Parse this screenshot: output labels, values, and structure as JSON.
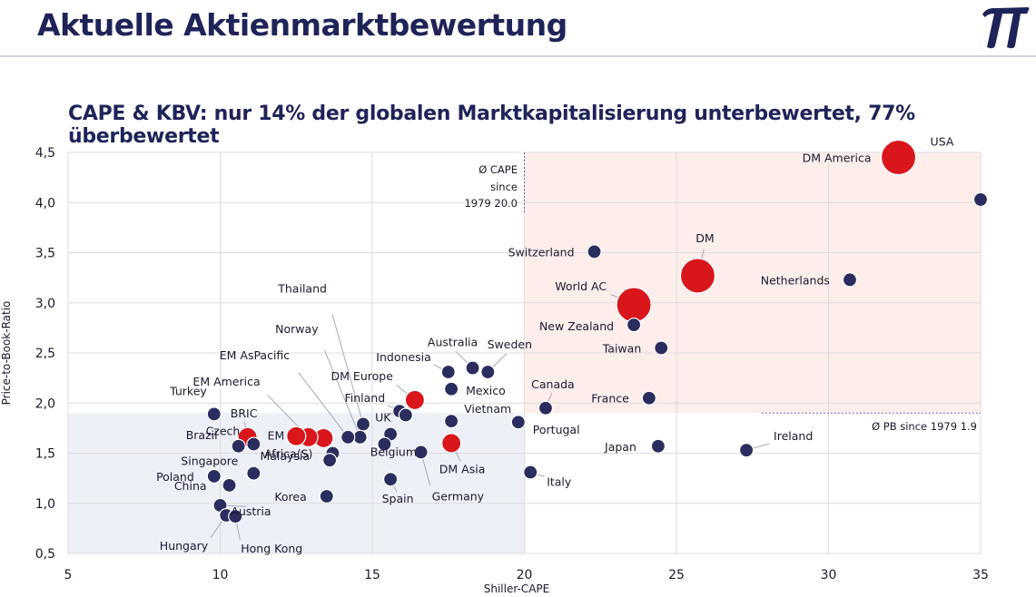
{
  "page": {
    "title": "Aktuelle Aktienmarktbewertung",
    "subtitle": "CAPE & KBV: nur 14% der globalen Marktkapitalisierung unterbewertet, 77% überbewertet",
    "logo_text": "π"
  },
  "chart_data": {
    "type": "scatter",
    "xlabel": "Shiller-CAPE",
    "ylabel": "Price-to-Book-Ratio",
    "xlim": [
      5,
      35
    ],
    "ylim": [
      0.5,
      4.5
    ],
    "x_ticks": [
      "5",
      "10",
      "15",
      "20",
      "25",
      "30",
      "35"
    ],
    "y_ticks": [
      "0,5",
      "1,0",
      "1,5",
      "2,0",
      "2,5",
      "3,0",
      "3,5",
      "4,0",
      "4,5"
    ],
    "grid": true,
    "colors": {
      "country": "#2b2d5e",
      "aggregate": "#d8161b",
      "overvalued_zone": "#fdeeec",
      "undervalued_zone": "#eef0f8"
    },
    "reference_lines": {
      "cape_avg": {
        "value": 20.0,
        "label_lines": [
          "Ø CAPE",
          "since",
          "1979 20.0"
        ]
      },
      "pb_avg": {
        "value": 1.9,
        "label": "Ø PB since 1979 1.9"
      }
    },
    "points": [
      {
        "label": "USA",
        "x": 32.3,
        "y": 4.45,
        "kind": "aggregate",
        "size": "xl"
      },
      {
        "label": "DM America",
        "x": 32.3,
        "y": 4.45,
        "kind": "aggregate",
        "size": "xl"
      },
      {
        "label": "",
        "x": 35.0,
        "y": 4.03,
        "kind": "country",
        "size": "s"
      },
      {
        "label": "Switzerland",
        "x": 22.3,
        "y": 3.51,
        "kind": "country",
        "size": "s"
      },
      {
        "label": "DM",
        "x": 25.7,
        "y": 3.27,
        "kind": "aggregate",
        "size": "xl"
      },
      {
        "label": "Netherlands",
        "x": 30.7,
        "y": 3.23,
        "kind": "country",
        "size": "s"
      },
      {
        "label": "World AC",
        "x": 23.6,
        "y": 2.98,
        "kind": "aggregate",
        "size": "xl"
      },
      {
        "label": "New Zealand",
        "x": 23.6,
        "y": 2.78,
        "kind": "country",
        "size": "s"
      },
      {
        "label": "Taiwan",
        "x": 24.5,
        "y": 2.55,
        "kind": "country",
        "size": "s"
      },
      {
        "label": "Australia",
        "x": 18.3,
        "y": 2.35,
        "kind": "country",
        "size": "s"
      },
      {
        "label": "Sweden",
        "x": 18.8,
        "y": 2.31,
        "kind": "country",
        "size": "s"
      },
      {
        "label": "Indonesia",
        "x": 17.5,
        "y": 2.31,
        "kind": "country",
        "size": "s"
      },
      {
        "label": "Mexico",
        "x": 17.6,
        "y": 2.14,
        "kind": "country",
        "size": "s"
      },
      {
        "label": "DM Europe",
        "x": 16.4,
        "y": 2.03,
        "kind": "aggregate",
        "size": "m"
      },
      {
        "label": "France",
        "x": 24.1,
        "y": 2.05,
        "kind": "country",
        "size": "s"
      },
      {
        "label": "Canada",
        "x": 20.7,
        "y": 1.95,
        "kind": "country",
        "size": "s"
      },
      {
        "label": "Finland",
        "x": 15.9,
        "y": 1.92,
        "kind": "country",
        "size": "s"
      },
      {
        "label": "UK",
        "x": 16.1,
        "y": 1.88,
        "kind": "country",
        "size": "s"
      },
      {
        "label": "Turkey",
        "x": 9.8,
        "y": 1.89,
        "kind": "country",
        "size": "s"
      },
      {
        "label": "Vietnam",
        "x": 17.6,
        "y": 1.82,
        "kind": "country",
        "size": "s"
      },
      {
        "label": "Portugal",
        "x": 19.8,
        "y": 1.81,
        "kind": "country",
        "size": "s"
      },
      {
        "label": "Thailand",
        "x": 14.7,
        "y": 1.79,
        "kind": "country",
        "size": "s"
      },
      {
        "label": "",
        "x": 15.6,
        "y": 1.69,
        "kind": "country",
        "size": "s"
      },
      {
        "label": "Norway",
        "x": 14.6,
        "y": 1.66,
        "kind": "country",
        "size": "s"
      },
      {
        "label": "EM AsPacific",
        "x": 14.2,
        "y": 1.66,
        "kind": "country",
        "size": "s"
      },
      {
        "label": "",
        "x": 13.4,
        "y": 1.65,
        "kind": "aggregate",
        "size": "m"
      },
      {
        "label": "EM America",
        "x": 12.9,
        "y": 1.66,
        "kind": "aggregate",
        "size": "m"
      },
      {
        "label": "EM",
        "x": 12.5,
        "y": 1.67,
        "kind": "aggregate",
        "size": "m"
      },
      {
        "label": "BRIC",
        "x": 10.9,
        "y": 1.66,
        "kind": "aggregate",
        "size": "m"
      },
      {
        "label": "Czech",
        "x": 11.1,
        "y": 1.59,
        "kind": "country",
        "size": "s"
      },
      {
        "label": "Brazil",
        "x": 10.6,
        "y": 1.57,
        "kind": "country",
        "size": "s"
      },
      {
        "label": "DM Asia",
        "x": 17.6,
        "y": 1.6,
        "kind": "aggregate",
        "size": "m"
      },
      {
        "label": "Japan",
        "x": 24.4,
        "y": 1.57,
        "kind": "country",
        "size": "s"
      },
      {
        "label": "Ireland",
        "x": 27.3,
        "y": 1.53,
        "kind": "country",
        "size": "s"
      },
      {
        "label": "Belgium",
        "x": 15.4,
        "y": 1.59,
        "kind": "country",
        "size": "s"
      },
      {
        "label": "Germany",
        "x": 16.6,
        "y": 1.51,
        "kind": "country",
        "size": "s"
      },
      {
        "label": "Africa(S)",
        "x": 13.7,
        "y": 1.5,
        "kind": "country",
        "size": "s"
      },
      {
        "label": "Malaysia",
        "x": 13.6,
        "y": 1.43,
        "kind": "country",
        "size": "s"
      },
      {
        "label": "Singapore",
        "x": 11.1,
        "y": 1.3,
        "kind": "country",
        "size": "s"
      },
      {
        "label": "Italy",
        "x": 20.2,
        "y": 1.31,
        "kind": "country",
        "size": "s"
      },
      {
        "label": "Poland",
        "x": 9.8,
        "y": 1.27,
        "kind": "country",
        "size": "s"
      },
      {
        "label": "Spain",
        "x": 15.6,
        "y": 1.24,
        "kind": "country",
        "size": "s"
      },
      {
        "label": "China",
        "x": 10.3,
        "y": 1.18,
        "kind": "country",
        "size": "s"
      },
      {
        "label": "Korea",
        "x": 13.5,
        "y": 1.07,
        "kind": "country",
        "size": "s"
      },
      {
        "label": "Austria",
        "x": 10.0,
        "y": 0.98,
        "kind": "country",
        "size": "s"
      },
      {
        "label": "Hungary",
        "x": 10.2,
        "y": 0.88,
        "kind": "country",
        "size": "s"
      },
      {
        "label": "Hong Kong",
        "x": 10.5,
        "y": 0.87,
        "kind": "country",
        "size": "s"
      }
    ]
  }
}
